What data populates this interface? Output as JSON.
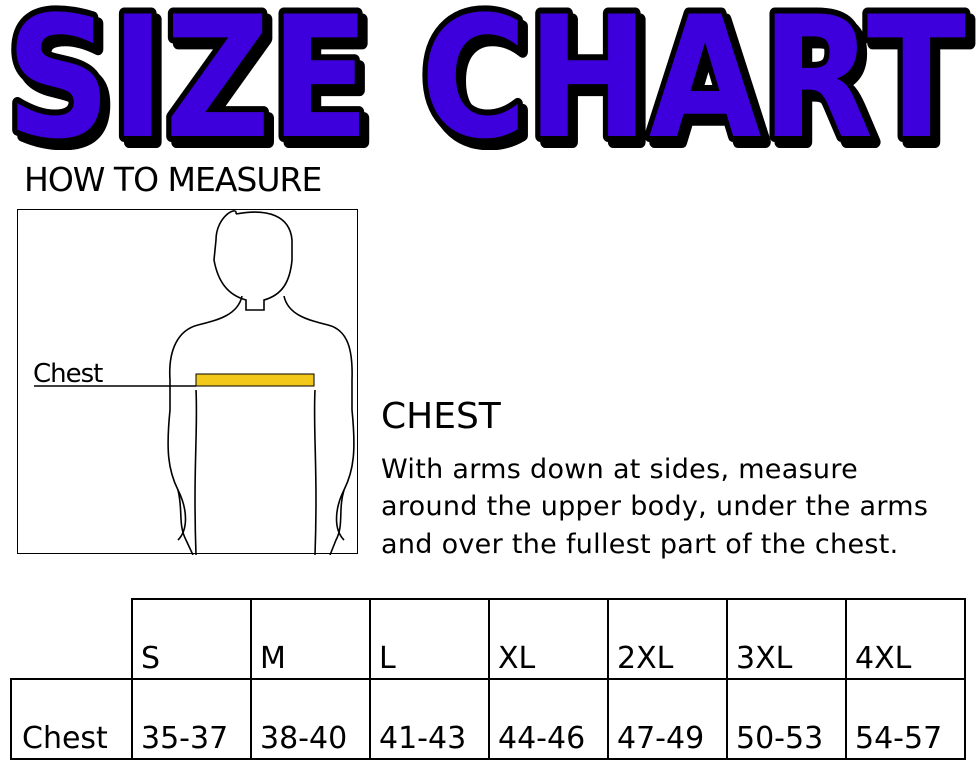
{
  "title": "SIZE CHART",
  "colors": {
    "title_fill": "#3d00dd",
    "title_outline": "#000000",
    "tape": "#f2c81a"
  },
  "how_to_measure": {
    "heading": "HOW TO MEASURE",
    "figure_label": "Chest",
    "figure_icon": "human-torso-outline"
  },
  "instructions": {
    "heading": "CHEST",
    "lines": [
      "With arms down at sides, measure",
      "around the upper body, under the arms",
      "and over the fullest part of the chest."
    ]
  },
  "size_table": {
    "sizes": [
      "S",
      "M",
      "L",
      "XL",
      "2XL",
      "3XL",
      "4XL"
    ],
    "row_label": "Chest",
    "values": [
      "35-37",
      "38-40",
      "41-43",
      "44-46",
      "47-49",
      "50-53",
      "54-57"
    ]
  }
}
